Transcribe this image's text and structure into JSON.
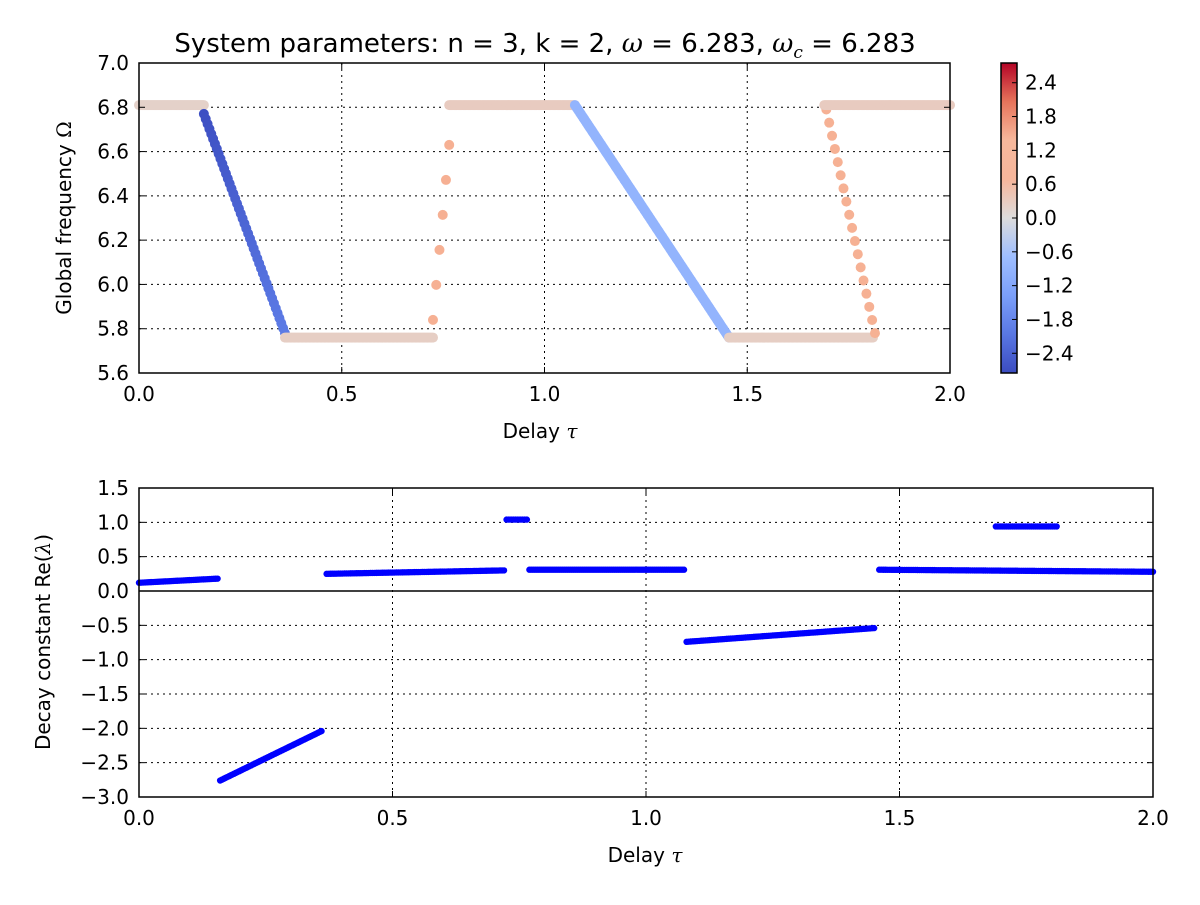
{
  "chart_data": [
    {
      "type": "scatter",
      "title_prefix": "System parameters: n = 3, k = 2, ",
      "title_omega": "ω",
      "title_omega_value": " = 6.283, ",
      "title_omegac": "ω",
      "title_omegac_sub": "c",
      "title_omegac_value": " = 6.283",
      "xlabel": "Delay",
      "xlabel_symbol": "τ",
      "ylabel": "Global frequency",
      "ylabel_symbol": "Ω",
      "xlim": [
        0.0,
        2.0
      ],
      "ylim": [
        5.6,
        7.0
      ],
      "xticks": [
        "0.0",
        "0.5",
        "1.0",
        "1.5",
        "2.0"
      ],
      "yticks": [
        "5.6",
        "5.8",
        "6.0",
        "6.2",
        "6.4",
        "6.6",
        "6.8",
        "7.0"
      ],
      "grid": true,
      "colormap": "coolwarm",
      "colorbar": {
        "range": [
          -2.75,
          2.75
        ],
        "ticks": [
          "−2.4",
          "−1.8",
          "−1.2",
          "−0.6",
          "0.0",
          "0.6",
          "1.2",
          "1.8",
          "2.4"
        ],
        "tick_values": [
          -2.4,
          -1.8,
          -1.2,
          -0.6,
          0.0,
          0.6,
          1.2,
          1.8,
          2.4
        ]
      },
      "series": [
        {
          "x_start": 0.0,
          "x_end": 0.16,
          "y_start": 6.81,
          "y_end": 6.81,
          "n": 60,
          "color_value": 0.2
        },
        {
          "x_start": 0.16,
          "x_end": 0.36,
          "y_start": 6.77,
          "y_end": 5.78,
          "n": 45,
          "color_value_start": -2.7,
          "color_value_end": -2.0
        },
        {
          "x_start": 0.36,
          "x_end": 0.725,
          "y_start": 5.76,
          "y_end": 5.76,
          "n": 110,
          "color_value": 0.25
        },
        {
          "x_start": 0.725,
          "x_end": 0.765,
          "y_start": 5.84,
          "y_end": 6.63,
          "n": 6,
          "color_value": 1.0
        },
        {
          "x_start": 0.765,
          "x_end": 1.075,
          "y_start": 6.81,
          "y_end": 6.81,
          "n": 100,
          "color_value": 0.3
        },
        {
          "x_start": 1.075,
          "x_end": 1.455,
          "y_start": 6.81,
          "y_end": 5.76,
          "n": 140,
          "color_value": -0.9
        },
        {
          "x_start": 1.455,
          "x_end": 1.81,
          "y_start": 5.76,
          "y_end": 5.76,
          "n": 110,
          "color_value": 0.25
        },
        {
          "x_start": 1.695,
          "x_end": 1.815,
          "y_start": 6.79,
          "y_end": 5.78,
          "n": 18,
          "color_value": 0.95
        },
        {
          "x_start": 1.69,
          "x_end": 2.0,
          "y_start": 6.81,
          "y_end": 6.81,
          "n": 100,
          "color_value": 0.3
        }
      ]
    },
    {
      "type": "scatter",
      "xlabel": "Delay",
      "xlabel_symbol": "τ",
      "ylabel": "Decay constant Re(",
      "ylabel_symbol": "λ",
      "ylabel_end": ")",
      "xlim": [
        0.0,
        2.0
      ],
      "ylim": [
        -3.0,
        1.5
      ],
      "xticks": [
        "0.0",
        "0.5",
        "1.0",
        "1.5",
        "2.0"
      ],
      "yticks": [
        "−3.0",
        "−2.5",
        "−2.0",
        "−1.5",
        "−1.0",
        "−0.5",
        "0.0",
        "0.5",
        "1.0",
        "1.5"
      ],
      "ytick_values": [
        -3.0,
        -2.5,
        -2.0,
        -1.5,
        -1.0,
        -0.5,
        0.0,
        0.5,
        1.0,
        1.5
      ],
      "grid": true,
      "zero_line": true,
      "marker_color": "#0000ff",
      "series": [
        {
          "x_start": 0.0,
          "x_end": 0.155,
          "y_start": 0.12,
          "y_end": 0.18,
          "n": 40
        },
        {
          "x_start": 0.16,
          "x_end": 0.36,
          "y_start": -2.76,
          "y_end": -2.04,
          "n": 60
        },
        {
          "x_start": 0.37,
          "x_end": 0.72,
          "y_start": 0.25,
          "y_end": 0.3,
          "n": 90
        },
        {
          "x_start": 0.725,
          "x_end": 0.765,
          "y_start": 1.04,
          "y_end": 1.04,
          "n": 10
        },
        {
          "x_start": 0.77,
          "x_end": 1.075,
          "y_start": 0.31,
          "y_end": 0.31,
          "n": 80
        },
        {
          "x_start": 1.08,
          "x_end": 1.45,
          "y_start": -0.74,
          "y_end": -0.54,
          "n": 90
        },
        {
          "x_start": 1.46,
          "x_end": 2.0,
          "y_start": 0.31,
          "y_end": 0.28,
          "n": 130
        },
        {
          "x_start": 1.69,
          "x_end": 1.81,
          "y_start": 0.94,
          "y_end": 0.94,
          "n": 30
        }
      ]
    }
  ]
}
